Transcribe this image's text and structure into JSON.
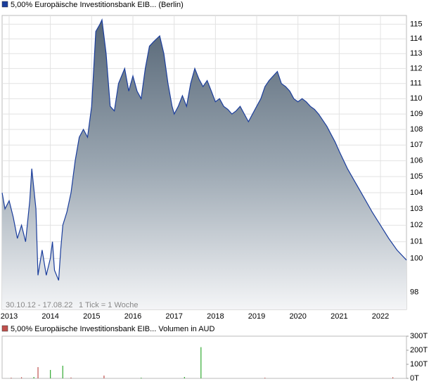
{
  "chart_data": [
    {
      "type": "area",
      "xlim": [
        2012.83,
        2022.63
      ],
      "xticks": [
        2013,
        2014,
        2015,
        2016,
        2017,
        2018,
        2019,
        2020,
        2021,
        2022
      ],
      "ylim": [
        97,
        115.6
      ],
      "log": true,
      "yticks": [
        98,
        100,
        101,
        102,
        103,
        104,
        105,
        106,
        107,
        108,
        109,
        110,
        111,
        112,
        113,
        114,
        115
      ],
      "grid": true,
      "annotations": [
        "30.10.12 - 17.08.22",
        "1 Tick = 1 Woche"
      ],
      "x": [
        2012.83,
        2012.9,
        2013.0,
        2013.1,
        2013.2,
        2013.3,
        2013.4,
        2013.5,
        2013.55,
        2013.65,
        2013.7,
        2013.8,
        2013.9,
        2014.0,
        2014.05,
        2014.1,
        2014.2,
        2014.25,
        2014.3,
        2014.4,
        2014.5,
        2014.6,
        2014.7,
        2014.8,
        2014.9,
        2015.0,
        2015.05,
        2015.1,
        2015.2,
        2015.25,
        2015.35,
        2015.45,
        2015.55,
        2015.65,
        2015.8,
        2015.9,
        2016.0,
        2016.1,
        2016.2,
        2016.3,
        2016.4,
        2016.5,
        2016.65,
        2016.75,
        2016.85,
        2016.95,
        2017.0,
        2017.1,
        2017.2,
        2017.3,
        2017.4,
        2017.5,
        2017.6,
        2017.7,
        2017.8,
        2017.9,
        2018.0,
        2018.1,
        2018.2,
        2018.3,
        2018.4,
        2018.5,
        2018.6,
        2018.7,
        2018.8,
        2018.9,
        2019.0,
        2019.1,
        2019.2,
        2019.3,
        2019.4,
        2019.5,
        2019.6,
        2019.7,
        2019.8,
        2019.9,
        2020.0,
        2020.1,
        2020.2,
        2020.3,
        2020.4,
        2020.5,
        2020.6,
        2020.7,
        2020.8,
        2020.9,
        2021.0,
        2021.2,
        2021.4,
        2021.6,
        2021.8,
        2022.0,
        2022.2,
        2022.4,
        2022.63
      ],
      "series": [
        {
          "name": "5,00% Europäische Investitionsbank EIB... (Berlin)",
          "color": "#1a3d9c",
          "values": [
            104.0,
            103.0,
            103.5,
            102.5,
            101.2,
            102.0,
            101.0,
            103.5,
            105.5,
            103.0,
            99.0,
            100.5,
            99.0,
            100.0,
            101.0,
            99.3,
            98.7,
            100.5,
            102.0,
            102.8,
            104.0,
            106.0,
            107.5,
            108.0,
            107.5,
            109.5,
            112.0,
            114.5,
            115.0,
            115.3,
            113.0,
            109.5,
            109.2,
            111.0,
            112.0,
            110.5,
            111.5,
            110.5,
            110.0,
            112.0,
            113.5,
            113.8,
            114.2,
            113.0,
            111.0,
            109.5,
            109.0,
            109.5,
            110.2,
            109.5,
            111.0,
            112.0,
            111.3,
            110.8,
            111.2,
            110.5,
            109.8,
            110.0,
            109.5,
            109.3,
            109.0,
            109.2,
            109.5,
            109.0,
            108.5,
            109.0,
            109.5,
            110.0,
            110.8,
            111.2,
            111.5,
            111.8,
            111.0,
            110.8,
            110.5,
            110.0,
            109.8,
            110.0,
            109.8,
            109.5,
            109.3,
            109.0,
            108.6,
            108.2,
            107.7,
            107.2,
            106.6,
            105.5,
            104.6,
            103.7,
            102.8,
            102.0,
            101.2,
            100.5,
            99.9
          ]
        }
      ]
    },
    {
      "type": "bar",
      "xlim": [
        2012.83,
        2022.63
      ],
      "ylim": [
        0,
        300
      ],
      "yticks": [
        {
          "value": 0,
          "label": "0T"
        },
        {
          "value": 100,
          "label": "100T"
        },
        {
          "value": 200,
          "label": "200T"
        },
        {
          "value": 300,
          "label": "300T"
        }
      ],
      "x": [
        2013.05,
        2013.3,
        2013.6,
        2013.7,
        2014.0,
        2014.3,
        2014.5,
        2015.3,
        2016.2,
        2017.25,
        2017.65,
        2019.2,
        2022.3
      ],
      "series": [
        {
          "name": "5,00% Europäische Investitionsbank EIB... Volumen in AUD",
          "color": "#c0504d",
          "values": [
            5,
            8,
            10,
            80,
            60,
            90,
            6,
            20,
            5,
            10,
            222,
            5,
            8
          ],
          "colors": [
            "#c0504d",
            "#c0504d",
            "#33aa33",
            "#c0504d",
            "#33aa33",
            "#33aa33",
            "#c0504d",
            "#c0504d",
            "#33aa33",
            "#33aa33",
            "#33aa33",
            "#c0504d",
            "#c0504d"
          ]
        }
      ]
    }
  ]
}
